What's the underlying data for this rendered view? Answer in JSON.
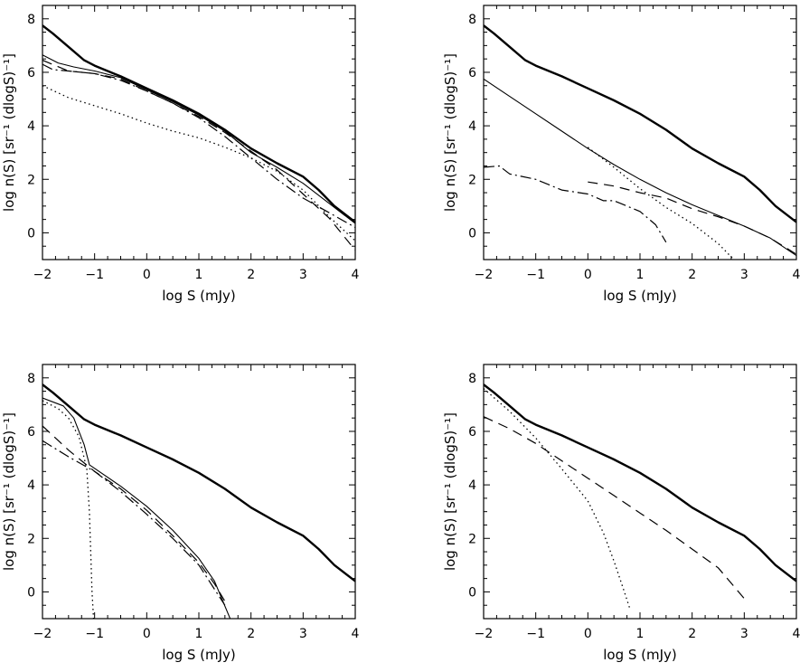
{
  "chart_data": [
    {
      "type": "line",
      "xlabel": "log S (mJy)",
      "ylabel": "log n(S) [sr⁻¹ (dlogS)⁻¹]",
      "xlim": [
        -2,
        4
      ],
      "ylim": [
        -1,
        8.5
      ],
      "xticks": [
        "−2",
        "−1",
        "0",
        "1",
        "2",
        "3",
        "4"
      ],
      "yticks": [
        "0",
        "2",
        "4",
        "6",
        "8"
      ],
      "series": [
        {
          "style": "thick",
          "points": [
            [
              -2,
              7.75
            ],
            [
              -1.8,
              7.45
            ],
            [
              -1.5,
              6.95
            ],
            [
              -1.2,
              6.45
            ],
            [
              -1,
              6.25
            ],
            [
              -0.5,
              5.85
            ],
            [
              0,
              5.4
            ],
            [
              0.5,
              4.95
            ],
            [
              1,
              4.45
            ],
            [
              1.5,
              3.85
            ],
            [
              2,
              3.15
            ],
            [
              2.5,
              2.6
            ],
            [
              3,
              2.1
            ],
            [
              3.3,
              1.6
            ],
            [
              3.6,
              1.0
            ],
            [
              4,
              0.4
            ]
          ]
        },
        {
          "style": "thin",
          "points": [
            [
              -2,
              6.65
            ],
            [
              -1.7,
              6.35
            ],
            [
              -1.4,
              6.2
            ],
            [
              -1,
              6.05
            ],
            [
              -0.5,
              5.8
            ],
            [
              0,
              5.35
            ],
            [
              0.5,
              4.9
            ],
            [
              1,
              4.4
            ],
            [
              1.5,
              3.8
            ],
            [
              2,
              3.0
            ],
            [
              2.5,
              2.45
            ],
            [
              3,
              1.85
            ],
            [
              3.5,
              1.1
            ],
            [
              4,
              0.35
            ]
          ]
        },
        {
          "style": "dotted",
          "points": [
            [
              -2,
              5.5
            ],
            [
              -1.5,
              5.05
            ],
            [
              -1,
              4.75
            ],
            [
              -0.5,
              4.45
            ],
            [
              0,
              4.1
            ],
            [
              0.5,
              3.8
            ],
            [
              1,
              3.55
            ],
            [
              1.5,
              3.2
            ],
            [
              2,
              2.8
            ],
            [
              2.5,
              2.3
            ],
            [
              3,
              1.6
            ],
            [
              3.5,
              0.6
            ],
            [
              4,
              -0.3
            ]
          ]
        },
        {
          "style": "dashed",
          "points": [
            [
              -2,
              6.45
            ],
            [
              -1.5,
              6.05
            ],
            [
              -1,
              5.95
            ],
            [
              -0.5,
              5.75
            ],
            [
              0,
              5.3
            ],
            [
              0.5,
              4.85
            ],
            [
              1,
              4.35
            ],
            [
              1.5,
              3.75
            ],
            [
              2,
              3.05
            ],
            [
              2.5,
              2.35
            ],
            [
              3,
              1.45
            ],
            [
              3.5,
              0.55
            ],
            [
              4,
              -0.65
            ]
          ]
        },
        {
          "style": "dotdash",
          "points": [
            [
              -2,
              6.3
            ],
            [
              -1.8,
              6.1
            ],
            [
              -1.5,
              6.05
            ],
            [
              -1,
              5.95
            ],
            [
              -0.5,
              5.7
            ],
            [
              0,
              5.3
            ],
            [
              0.5,
              4.85
            ],
            [
              1,
              4.3
            ],
            [
              1.5,
              3.6
            ],
            [
              2,
              2.8
            ],
            [
              2.5,
              2.0
            ],
            [
              3,
              1.3
            ],
            [
              3.5,
              0.75
            ],
            [
              4,
              0.2
            ]
          ]
        }
      ]
    },
    {
      "type": "line",
      "xlabel": "log S (mJy)",
      "ylabel": "log n(S) [sr⁻¹ (dlogS)⁻¹]",
      "xlim": [
        -2,
        4
      ],
      "ylim": [
        -1,
        8.5
      ],
      "xticks": [
        "−2",
        "−1",
        "0",
        "1",
        "2",
        "3",
        "4"
      ],
      "yticks": [
        "0",
        "2",
        "4",
        "6",
        "8"
      ],
      "series": [
        {
          "style": "thick",
          "points": [
            [
              -2,
              7.75
            ],
            [
              -1.8,
              7.45
            ],
            [
              -1.5,
              6.95
            ],
            [
              -1.2,
              6.45
            ],
            [
              -1,
              6.25
            ],
            [
              -0.5,
              5.85
            ],
            [
              0,
              5.4
            ],
            [
              0.5,
              4.95
            ],
            [
              1,
              4.45
            ],
            [
              1.5,
              3.85
            ],
            [
              2,
              3.15
            ],
            [
              2.5,
              2.6
            ],
            [
              3,
              2.1
            ],
            [
              3.3,
              1.6
            ],
            [
              3.6,
              1.0
            ],
            [
              4,
              0.4
            ]
          ]
        },
        {
          "style": "thin",
          "points": [
            [
              -2,
              5.75
            ],
            [
              -1.5,
              5.1
            ],
            [
              -1,
              4.45
            ],
            [
              -0.5,
              3.8
            ],
            [
              0,
              3.15
            ],
            [
              0.5,
              2.55
            ],
            [
              1,
              2.0
            ],
            [
              1.5,
              1.5
            ],
            [
              2,
              1.05
            ],
            [
              2.5,
              0.65
            ],
            [
              3,
              0.25
            ],
            [
              3.5,
              -0.2
            ],
            [
              4,
              -0.85
            ]
          ]
        },
        {
          "style": "dotted",
          "points": [
            [
              0,
              3.2
            ],
            [
              0.5,
              2.45
            ],
            [
              1,
              1.65
            ],
            [
              1.5,
              0.95
            ],
            [
              2,
              0.35
            ],
            [
              2.5,
              -0.4
            ],
            [
              2.8,
              -1.0
            ]
          ]
        },
        {
          "style": "dashed",
          "points": [
            [
              0,
              1.9
            ],
            [
              0.5,
              1.75
            ],
            [
              1,
              1.5
            ],
            [
              1.5,
              1.3
            ],
            [
              2,
              0.9
            ],
            [
              2.5,
              0.6
            ],
            [
              3,
              0.25
            ],
            [
              3.5,
              -0.2
            ],
            [
              4,
              -0.8
            ]
          ]
        },
        {
          "style": "dotdash",
          "points": [
            [
              -2,
              2.45
            ],
            [
              -1.7,
              2.5
            ],
            [
              -1.5,
              2.2
            ],
            [
              -1,
              2.0
            ],
            [
              -0.5,
              1.6
            ],
            [
              0,
              1.45
            ],
            [
              0.3,
              1.2
            ],
            [
              0.5,
              1.2
            ],
            [
              1,
              0.8
            ],
            [
              1.3,
              0.3
            ],
            [
              1.5,
              -0.35
            ]
          ]
        }
      ]
    },
    {
      "type": "line",
      "xlabel": "log S (mJy)",
      "ylabel": "log n(S) [sr⁻¹ (dlogS)⁻¹]",
      "xlim": [
        -2,
        4
      ],
      "ylim": [
        -1,
        8.5
      ],
      "xticks": [
        "−2",
        "−1",
        "0",
        "1",
        "2",
        "3",
        "4"
      ],
      "yticks": [
        "0",
        "2",
        "4",
        "6",
        "8"
      ],
      "series": [
        {
          "style": "thick",
          "points": [
            [
              -2,
              7.75
            ],
            [
              -1.8,
              7.45
            ],
            [
              -1.5,
              6.95
            ],
            [
              -1.2,
              6.45
            ],
            [
              -1,
              6.25
            ],
            [
              -0.5,
              5.85
            ],
            [
              0,
              5.4
            ],
            [
              0.5,
              4.95
            ],
            [
              1,
              4.45
            ],
            [
              1.5,
              3.85
            ],
            [
              2,
              3.15
            ],
            [
              2.5,
              2.6
            ],
            [
              3,
              2.1
            ],
            [
              3.3,
              1.6
            ],
            [
              3.6,
              1.0
            ],
            [
              4,
              0.4
            ]
          ]
        },
        {
          "style": "thin",
          "points": [
            [
              -2,
              7.25
            ],
            [
              -1.6,
              6.95
            ],
            [
              -1.4,
              6.5
            ],
            [
              -1.2,
              5.5
            ],
            [
              -1.1,
              4.75
            ],
            [
              -0.5,
              3.95
            ],
            [
              0,
              3.2
            ],
            [
              0.5,
              2.3
            ],
            [
              1,
              1.25
            ],
            [
              1.3,
              0.4
            ],
            [
              1.6,
              -1.0
            ]
          ]
        },
        {
          "style": "dotted",
          "points": [
            [
              -2,
              7.15
            ],
            [
              -1.7,
              6.85
            ],
            [
              -1.5,
              6.5
            ],
            [
              -1.3,
              5.8
            ],
            [
              -1.15,
              4.6
            ],
            [
              -1.1,
              3.0
            ],
            [
              -1.05,
              0.0
            ],
            [
              -1.02,
              -1.0
            ]
          ]
        },
        {
          "style": "dashed",
          "points": [
            [
              -2,
              6.2
            ],
            [
              -1.5,
              5.3
            ],
            [
              -1,
              4.5
            ],
            [
              -0.5,
              3.85
            ],
            [
              0,
              3.05
            ],
            [
              0.5,
              2.1
            ],
            [
              1,
              1.1
            ],
            [
              1.3,
              0.3
            ],
            [
              1.5,
              -0.35
            ]
          ]
        },
        {
          "style": "dotdash",
          "points": [
            [
              -2,
              5.65
            ],
            [
              -1.5,
              5.05
            ],
            [
              -1,
              4.5
            ],
            [
              -0.5,
              3.75
            ],
            [
              0,
              2.9
            ],
            [
              0.5,
              2.0
            ],
            [
              1,
              1.0
            ],
            [
              1.3,
              0.1
            ],
            [
              1.5,
              -0.5
            ]
          ]
        }
      ]
    },
    {
      "type": "line",
      "xlabel": "log S (mJy)",
      "ylabel": "log n(S) [sr⁻¹ (dlogS)⁻¹]",
      "xlim": [
        -2,
        4
      ],
      "ylim": [
        -1,
        8.5
      ],
      "xticks": [
        "−2",
        "−1",
        "0",
        "1",
        "2",
        "3",
        "4"
      ],
      "yticks": [
        "0",
        "2",
        "4",
        "6",
        "8"
      ],
      "series": [
        {
          "style": "thick",
          "points": [
            [
              -2,
              7.75
            ],
            [
              -1.8,
              7.45
            ],
            [
              -1.5,
              6.95
            ],
            [
              -1.2,
              6.45
            ],
            [
              -1,
              6.25
            ],
            [
              -0.5,
              5.85
            ],
            [
              0,
              5.4
            ],
            [
              0.5,
              4.95
            ],
            [
              1,
              4.45
            ],
            [
              1.5,
              3.85
            ],
            [
              2,
              3.15
            ],
            [
              2.5,
              2.6
            ],
            [
              3,
              2.1
            ],
            [
              3.3,
              1.6
            ],
            [
              3.6,
              1.0
            ],
            [
              4,
              0.4
            ]
          ]
        },
        {
          "style": "dotted",
          "points": [
            [
              -2,
              7.6
            ],
            [
              -1.5,
              6.75
            ],
            [
              -1,
              5.75
            ],
            [
              -0.5,
              4.6
            ],
            [
              0,
              3.4
            ],
            [
              0.3,
              2.2
            ],
            [
              0.5,
              1.15
            ],
            [
              0.7,
              0.0
            ],
            [
              0.8,
              -0.6
            ]
          ]
        },
        {
          "style": "dashed",
          "points": [
            [
              -2,
              6.55
            ],
            [
              -1.5,
              6.1
            ],
            [
              -1,
              5.55
            ],
            [
              -0.5,
              4.9
            ],
            [
              0,
              4.25
            ],
            [
              0.5,
              3.6
            ],
            [
              1,
              2.95
            ],
            [
              1.5,
              2.3
            ],
            [
              2,
              1.6
            ],
            [
              2.5,
              0.9
            ],
            [
              3,
              -0.25
            ]
          ]
        }
      ]
    }
  ]
}
